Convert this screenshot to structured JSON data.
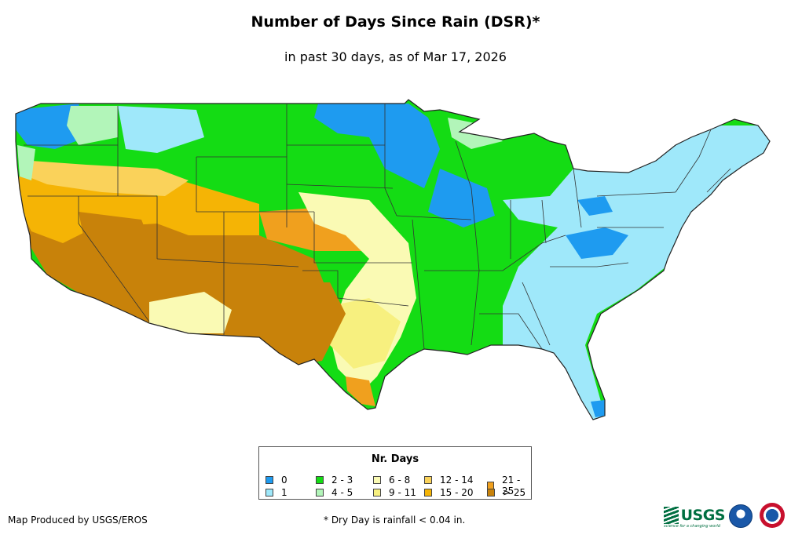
{
  "title": "Number of Days Since Rain (DSR)*",
  "subtitle": "in past 30 days, as of Mar 17, 2026",
  "legend": {
    "title": "Nr. Days",
    "items": [
      {
        "label": "0",
        "color": "#1e9bf0"
      },
      {
        "label": "1",
        "color": "#9fe8fa"
      },
      {
        "label": "2 - 3",
        "color": "#14dc14"
      },
      {
        "label": "4 - 5",
        "color": "#b2f5b9"
      },
      {
        "label": "6 - 8",
        "color": "#fafab4"
      },
      {
        "label": "9 - 11",
        "color": "#f7f07f"
      },
      {
        "label": "12 - 14",
        "color": "#fad25a"
      },
      {
        "label": "15 - 20",
        "color": "#f5b405"
      },
      {
        "label": "21 - 25",
        "color": "#f0a01e"
      },
      {
        "label": "> 25",
        "color": "#c8820a"
      }
    ]
  },
  "footer": {
    "credit": "Map Produced by USGS/EROS",
    "note": "* Dry Day is rainfall < 0.04 in."
  },
  "logos": {
    "usgs": "USGS",
    "usgs_tagline": "science for a changing world",
    "noaa": "noaa-seal",
    "nws": "nws-seal"
  }
}
